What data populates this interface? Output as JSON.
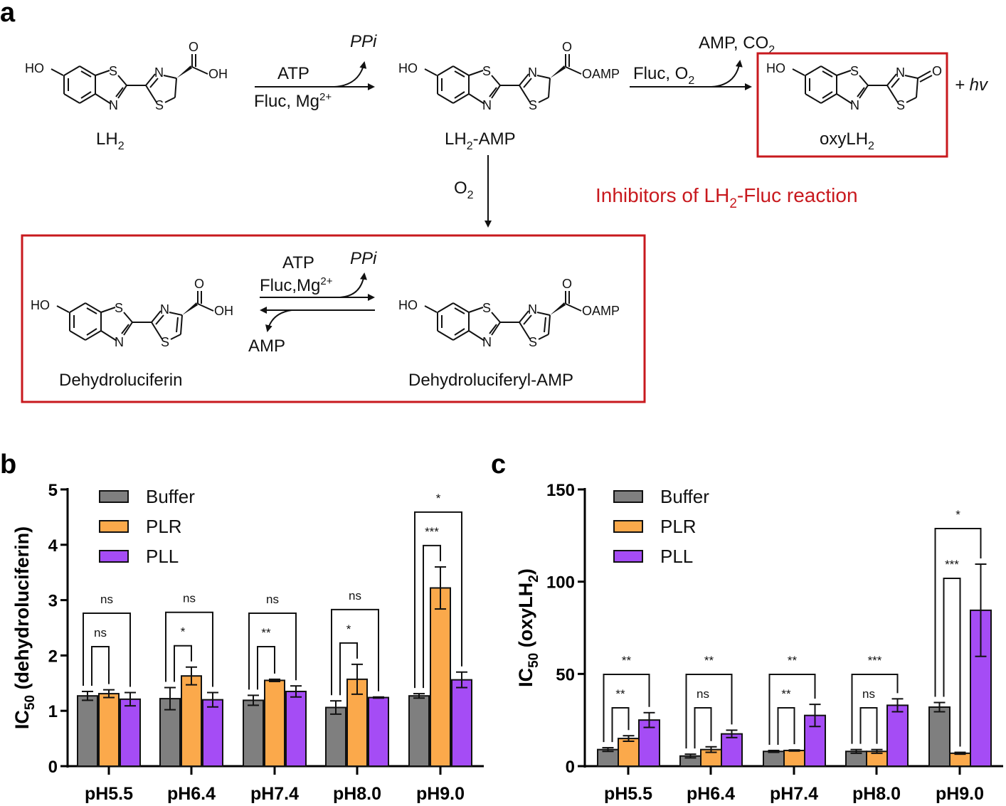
{
  "panels": {
    "a": "a",
    "b": "b",
    "c": "c"
  },
  "atoms": {
    "ho": "HO",
    "s": "S",
    "n": "N",
    "o": "O",
    "oh": "OH",
    "oamp": "OAMP"
  },
  "scheme": {
    "lh2": {
      "main": "LH",
      "sub": "2"
    },
    "step1": {
      "top": "ATP",
      "bottom": "Fluc, Mg",
      "bottom_sup": "2+",
      "byproduct": "PPi"
    },
    "lh2amp": {
      "main": "LH",
      "sub": "2",
      "rest": "-AMP"
    },
    "step2": {
      "top": "AMP, CO",
      "top_sub": "2",
      "bottom": "Fluc, O",
      "bottom_sub": "2"
    },
    "oxy": {
      "main": "oxyLH",
      "sub": "2"
    },
    "light": "+ hv",
    "o2": {
      "main": "O",
      "sub": "2"
    },
    "inhibitors": {
      "main": "Inhibitors of LH",
      "sub": "2",
      "rest": "-Fluc reaction"
    },
    "step3": {
      "top": "ATP",
      "middle": "Fluc,Mg",
      "middle_sup": "2+",
      "byproduct": "PPi",
      "reverse_byproduct": "AMP"
    },
    "dehydroluciferin": "Dehydroluciferin",
    "dehydroluciferyl_amp": "Dehydroluciferyl-AMP",
    "colors": {
      "box": "#c8191e",
      "inhibitor_text": "#c8191e"
    }
  },
  "chart_data": [
    {
      "type": "bar",
      "panel": "b",
      "ylabel": {
        "main": "IC",
        "sub": "50",
        "rest": " (dehydroluciferin)"
      },
      "xlabel": "",
      "ylim": [
        0,
        5
      ],
      "yticks": [
        "0",
        "1",
        "2",
        "3",
        "4",
        "5"
      ],
      "categories": [
        "pH5.5",
        "pH6.4",
        "pH7.4",
        "pH8.0",
        "pH9.0"
      ],
      "legend_position": "top-left",
      "series": [
        {
          "name": "Buffer",
          "color": "#7f7f7f",
          "values": [
            1.27,
            1.22,
            1.19,
            1.06,
            1.27
          ],
          "errors": [
            0.08,
            0.2,
            0.09,
            0.12,
            0.04
          ]
        },
        {
          "name": "PLR",
          "color": "#fba94b",
          "values": [
            1.31,
            1.63,
            1.55,
            1.57,
            3.22
          ],
          "errors": [
            0.07,
            0.16,
            0.02,
            0.27,
            0.38
          ]
        },
        {
          "name": "PLL",
          "color": "#a54cf5",
          "values": [
            1.21,
            1.2,
            1.35,
            1.24,
            1.56
          ],
          "errors": [
            0.12,
            0.13,
            0.1,
            0.01,
            0.14
          ]
        }
      ],
      "significance": [
        {
          "inner": "ns",
          "outer": "ns"
        },
        {
          "inner": "*",
          "outer": "ns"
        },
        {
          "inner": "**",
          "outer": "ns"
        },
        {
          "inner": "*",
          "outer": "ns"
        },
        {
          "inner": "***",
          "outer": "*"
        }
      ]
    },
    {
      "type": "bar",
      "panel": "c",
      "ylabel": {
        "main": "IC",
        "sub": "50",
        "rest": " (oxyLH",
        "sub2": "2",
        "end": ")"
      },
      "xlabel": "",
      "ylim": [
        0,
        150
      ],
      "yticks": [
        "0",
        "50",
        "100",
        "150"
      ],
      "categories": [
        "pH5.5",
        "pH6.4",
        "pH7.4",
        "pH8.0",
        "pH9.0"
      ],
      "legend_position": "top-left",
      "series": [
        {
          "name": "Buffer",
          "color": "#7f7f7f",
          "values": [
            9,
            5.5,
            8,
            8,
            32
          ],
          "errors": [
            1,
            1,
            0.5,
            1,
            2.5
          ]
        },
        {
          "name": "PLR",
          "color": "#fba94b",
          "values": [
            15,
            9,
            8.5,
            8,
            7
          ],
          "errors": [
            1.5,
            1.5,
            0.3,
            1,
            0.5
          ]
        },
        {
          "name": "PLL",
          "color": "#a54cf5",
          "values": [
            25,
            17.5,
            27.5,
            33,
            84.5
          ],
          "errors": [
            4,
            2,
            6,
            3.5,
            25
          ]
        }
      ],
      "significance": [
        {
          "inner": "**",
          "outer": "**"
        },
        {
          "inner": "ns",
          "outer": "**"
        },
        {
          "inner": "**",
          "outer": "**"
        },
        {
          "inner": "ns",
          "outer": "***"
        },
        {
          "inner": "***",
          "outer": "*"
        }
      ]
    }
  ]
}
